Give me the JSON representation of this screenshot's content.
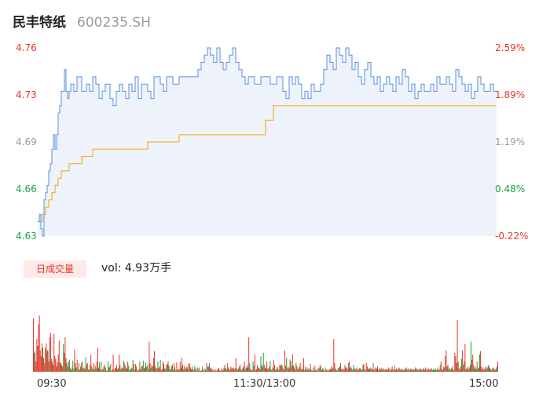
{
  "header": {
    "name": "民丰特纸",
    "code": "600235.SH"
  },
  "colors": {
    "up": "#e8362b",
    "down": "#17a23a",
    "flat": "#9a9a9a",
    "price_line": "#5a8fe0",
    "avg_line": "#f2b230",
    "area": "#eef3fb"
  },
  "price_axis": {
    "labels": [
      "4.76",
      "4.73",
      "4.69",
      "4.66",
      "4.63"
    ],
    "colors": [
      "#e8362b",
      "#e8362b",
      "#9a9a9a",
      "#17a23a",
      "#17a23a"
    ]
  },
  "pct_axis": {
    "labels": [
      "2.59%",
      "1.89%",
      "1.19%",
      "0.48%",
      "-0.22%"
    ],
    "colors": [
      "#e8362b",
      "#e8362b",
      "#9a9a9a",
      "#17a23a",
      "#e8362b"
    ]
  },
  "volume": {
    "tag": "日成交量",
    "summary": "vol: 4.93万手"
  },
  "time_axis": [
    "09:30",
    "11:30/13:00",
    "15:00"
  ],
  "chart_data": {
    "type": "line",
    "ylim": [
      4.63,
      4.76
    ],
    "series": [
      {
        "key": "price",
        "points": [
          [
            0,
            4.64
          ],
          [
            2,
            4.645
          ],
          [
            4,
            4.635
          ],
          [
            6,
            4.63
          ],
          [
            8,
            4.655
          ],
          [
            10,
            4.66
          ],
          [
            12,
            4.665
          ],
          [
            14,
            4.675
          ],
          [
            16,
            4.68
          ],
          [
            18,
            4.69
          ],
          [
            20,
            4.7
          ],
          [
            22,
            4.69
          ],
          [
            24,
            4.7
          ],
          [
            26,
            4.715
          ],
          [
            28,
            4.72
          ],
          [
            30,
            4.73
          ],
          [
            34,
            4.745
          ],
          [
            36,
            4.73
          ],
          [
            38,
            4.725
          ],
          [
            40,
            4.73
          ],
          [
            42,
            4.735
          ],
          [
            46,
            4.73
          ],
          [
            50,
            4.74
          ],
          [
            54,
            4.74
          ],
          [
            56,
            4.73
          ],
          [
            58,
            4.73
          ],
          [
            62,
            4.735
          ],
          [
            66,
            4.73
          ],
          [
            70,
            4.74
          ],
          [
            74,
            4.735
          ],
          [
            78,
            4.725
          ],
          [
            82,
            4.73
          ],
          [
            86,
            4.735
          ],
          [
            92,
            4.725
          ],
          [
            96,
            4.72
          ],
          [
            100,
            4.73
          ],
          [
            104,
            4.735
          ],
          [
            108,
            4.73
          ],
          [
            112,
            4.725
          ],
          [
            116,
            4.735
          ],
          [
            120,
            4.73
          ],
          [
            124,
            4.74
          ],
          [
            128,
            4.725
          ],
          [
            132,
            4.735
          ],
          [
            136,
            4.735
          ],
          [
            140,
            4.73
          ],
          [
            144,
            4.725
          ],
          [
            148,
            4.74
          ],
          [
            152,
            4.74
          ],
          [
            156,
            4.735
          ],
          [
            160,
            4.73
          ],
          [
            164,
            4.74
          ],
          [
            168,
            4.74
          ],
          [
            172,
            4.735
          ],
          [
            176,
            4.735
          ],
          [
            180,
            4.74
          ],
          [
            184,
            4.74
          ],
          [
            188,
            4.74
          ],
          [
            192,
            4.74
          ],
          [
            196,
            4.74
          ],
          [
            200,
            4.74
          ],
          [
            204,
            4.745
          ],
          [
            208,
            4.75
          ],
          [
            212,
            4.755
          ],
          [
            216,
            4.76
          ],
          [
            220,
            4.755
          ],
          [
            224,
            4.75
          ],
          [
            228,
            4.76
          ],
          [
            232,
            4.75
          ],
          [
            236,
            4.745
          ],
          [
            240,
            4.75
          ],
          [
            244,
            4.755
          ],
          [
            248,
            4.76
          ],
          [
            252,
            4.75
          ],
          [
            256,
            4.745
          ],
          [
            260,
            4.74
          ],
          [
            264,
            4.735
          ],
          [
            268,
            4.74
          ],
          [
            272,
            4.74
          ],
          [
            276,
            4.735
          ],
          [
            280,
            4.735
          ],
          [
            284,
            4.74
          ],
          [
            288,
            4.74
          ],
          [
            292,
            4.74
          ],
          [
            296,
            4.735
          ],
          [
            300,
            4.735
          ],
          [
            304,
            4.74
          ],
          [
            308,
            4.74
          ],
          [
            312,
            4.73
          ],
          [
            316,
            4.725
          ],
          [
            320,
            4.74
          ],
          [
            324,
            4.735
          ],
          [
            328,
            4.74
          ],
          [
            332,
            4.735
          ],
          [
            336,
            4.725
          ],
          [
            340,
            4.73
          ],
          [
            344,
            4.725
          ],
          [
            348,
            4.735
          ],
          [
            352,
            4.73
          ],
          [
            356,
            4.73
          ],
          [
            360,
            4.735
          ],
          [
            364,
            4.745
          ],
          [
            368,
            4.755
          ],
          [
            372,
            4.75
          ],
          [
            376,
            4.745
          ],
          [
            380,
            4.76
          ],
          [
            384,
            4.755
          ],
          [
            388,
            4.75
          ],
          [
            392,
            4.76
          ],
          [
            396,
            4.755
          ],
          [
            400,
            4.745
          ],
          [
            404,
            4.75
          ],
          [
            408,
            4.74
          ],
          [
            412,
            4.735
          ],
          [
            416,
            4.745
          ],
          [
            420,
            4.75
          ],
          [
            424,
            4.74
          ],
          [
            428,
            4.735
          ],
          [
            432,
            4.74
          ],
          [
            436,
            4.73
          ],
          [
            440,
            4.735
          ],
          [
            444,
            4.74
          ],
          [
            448,
            4.735
          ],
          [
            452,
            4.73
          ],
          [
            456,
            4.74
          ],
          [
            460,
            4.735
          ],
          [
            464,
            4.745
          ],
          [
            468,
            4.74
          ],
          [
            472,
            4.73
          ],
          [
            476,
            4.735
          ],
          [
            480,
            4.725
          ],
          [
            484,
            4.73
          ],
          [
            488,
            4.735
          ],
          [
            492,
            4.73
          ],
          [
            496,
            4.73
          ],
          [
            500,
            4.735
          ],
          [
            504,
            4.73
          ],
          [
            508,
            4.74
          ],
          [
            512,
            4.735
          ],
          [
            516,
            4.735
          ],
          [
            520,
            4.74
          ],
          [
            524,
            4.735
          ],
          [
            528,
            4.73
          ],
          [
            532,
            4.745
          ],
          [
            536,
            4.74
          ],
          [
            540,
            4.735
          ],
          [
            544,
            4.73
          ],
          [
            548,
            4.735
          ],
          [
            552,
            4.725
          ],
          [
            556,
            4.73
          ],
          [
            560,
            4.74
          ],
          [
            564,
            4.735
          ],
          [
            568,
            4.73
          ],
          [
            572,
            4.73
          ],
          [
            576,
            4.735
          ],
          [
            580,
            4.73
          ],
          [
            584,
            4.73
          ]
        ]
      },
      {
        "key": "avg",
        "points": [
          [
            0,
            4.64
          ],
          [
            6,
            4.645
          ],
          [
            10,
            4.65
          ],
          [
            14,
            4.655
          ],
          [
            18,
            4.66
          ],
          [
            22,
            4.665
          ],
          [
            26,
            4.67
          ],
          [
            30,
            4.675
          ],
          [
            40,
            4.68
          ],
          [
            56,
            4.685
          ],
          [
            70,
            4.69
          ],
          [
            100,
            4.69
          ],
          [
            140,
            4.695
          ],
          [
            180,
            4.7
          ],
          [
            240,
            4.7
          ],
          [
            290,
            4.71
          ],
          [
            300,
            4.72
          ],
          [
            584,
            4.72
          ]
        ]
      }
    ]
  },
  "volume_data": {
    "values": [
      0.62,
      0.22,
      0.24,
      0.12,
      0.38,
      0.3,
      0.55,
      0.65,
      0.25,
      0.18,
      0.33,
      0.28,
      0.16,
      0.1,
      0.28,
      0.33,
      0.25,
      0.24,
      0.12,
      0.4,
      0.45,
      0.15,
      0.12,
      0.08,
      0.44,
      0.18,
      0.15,
      0.06,
      0.11,
      0.2,
      0.36,
      0.1,
      0.11,
      0.08,
      0.06,
      0.32,
      0.22,
      0.4,
      0.16,
      0.1,
      0.06,
      0.12,
      0.14,
      0.04,
      0.02,
      0.05,
      0.13,
      0.03,
      0.26,
      0.1,
      0.05,
      0.14,
      0.03,
      0.1,
      0.02,
      0.06,
      0.1,
      0.12,
      0.04,
      0.05,
      0.03,
      0.17,
      0.08,
      0.1,
      0.03,
      0.02,
      0.08,
      0.2,
      0.06,
      0.03,
      0.1,
      0.03,
      0.07,
      0.04,
      0.12,
      0.28,
      0.05,
      0.11,
      0.03,
      0.12,
      0.02,
      0.03,
      0.06,
      0.08,
      0.05,
      0.02,
      0.01,
      0.12,
      0.05,
      0.06,
      0.09,
      0.01,
      0.03,
      0.2,
      0.02,
      0.04,
      0.05,
      0.08,
      0.03,
      0.04,
      0.2,
      0.08,
      0.03,
      0.05,
      0.04,
      0.13,
      0.1,
      0.07,
      0.04,
      0.04,
      0.12,
      0.07,
      0.03,
      0.02,
      0.05,
      0.04,
      0.14,
      0.09,
      0.02,
      0.09,
      0.06,
      0.02,
      0.01,
      0.03,
      0.12,
      0.03,
      0.06,
      0.07,
      0.13,
      0.04,
      0.05,
      0.11,
      0.06,
      0.08,
      0.03,
      0.35,
      0.1,
      0.05,
      0.08,
      0.06,
      0.16,
      0.24,
      0.07,
      0.04,
      0.04,
      0.12,
      0.04,
      0.06,
      0.14,
      0.02,
      0.03,
      0.12,
      0.09,
      0.04,
      0.03,
      0.08,
      0.09,
      0.12,
      0.07,
      0.03,
      0.03,
      0.07,
      0.08,
      0.02,
      0.1,
      0.05,
      0.02,
      0.11,
      0.02,
      0.03,
      0.03,
      0.12,
      0.05,
      0.16,
      0.08,
      0.03,
      0.07,
      0.03,
      0.05,
      0.06,
      0.03,
      0.09,
      0.1,
      0.05,
      0.03,
      0.06,
      0.03,
      0.02,
      0.07,
      0.04,
      0.01,
      0.05,
      0.03,
      0.05,
      0.01,
      0.01,
      0.02,
      0.06,
      0.03,
      0.01,
      0.04,
      0.02,
      0.1,
      0.06,
      0.06,
      0.1,
      0.04,
      0.05,
      0.02,
      0.03,
      0.02,
      0.01,
      0.03,
      0.01,
      0.02,
      0.04,
      0.04,
      0.02,
      0.01,
      0.04,
      0.02,
      0.02,
      0.05,
      0.08,
      0.04,
      0.03,
      0.1,
      0.05,
      0.02,
      0.03,
      0.06,
      0.04,
      0.04,
      0.05,
      0.03,
      0.04,
      0.16,
      0.04,
      0.02,
      0.04,
      0.06,
      0.08,
      0.03,
      0.02,
      0.05,
      0.06,
      0.12,
      0.03,
      0.05,
      0.08,
      0.05,
      0.4,
      0.1,
      0.04,
      0.02,
      0.02,
      0.12,
      0.07,
      0.2,
      0.02,
      0.03,
      0.08,
      0.05,
      0.05,
      0.03,
      0.18,
      0.08,
      0.06,
      0.22,
      0.08,
      0.04,
      0.05,
      0.12,
      0.03,
      0.04,
      0.06,
      0.13,
      0.02,
      0.03,
      0.05,
      0.14,
      0.08,
      0.02,
      0.03,
      0.06,
      0.04,
      0.02,
      0.08,
      0.07,
      0.09,
      0.07,
      0.04,
      0.02,
      0.25,
      0.07,
      0.16,
      0.04,
      0.06,
      0.04,
      0.14,
      0.12,
      0.06,
      0.2,
      0.08,
      0.05,
      0.02,
      0.1,
      0.07,
      0.04,
      0.03,
      0.06,
      0.1,
      0.04,
      0.02,
      0.04,
      0.16,
      0.02,
      0.06,
      0.03,
      0.05,
      0.02,
      0.04,
      0.03,
      0.09,
      0.02,
      0.01,
      0.05,
      0.02,
      0.07,
      0.02,
      0.03,
      0.01,
      0.05,
      0.04,
      0.08,
      0.06,
      0.02,
      0.04,
      0.03,
      0.01,
      0.05,
      0.02,
      0.03,
      0.01,
      0.02,
      0.03,
      0.03,
      0.06,
      0.03,
      0.05,
      0.38,
      0.1,
      0.04,
      0.02,
      0.02,
      0.04,
      0.05,
      0.06,
      0.1,
      0.03,
      0.03,
      0.04,
      0.02,
      0.08,
      0.05,
      0.05,
      0.03,
      0.1,
      0.12,
      0.04,
      0.06,
      0.04,
      0.02,
      0.08,
      0.04,
      0.03,
      0.04,
      0.02,
      0.05,
      0.02,
      0.04,
      0.04,
      0.03,
      0.02,
      0.08,
      0.09,
      0.03,
      0.02,
      0.1,
      0.06,
      0.03,
      0.04,
      0.04,
      0.05,
      0.03,
      0.03,
      0.1,
      0.02,
      0.05,
      0.03,
      0.04,
      0.06,
      0.02,
      0.03,
      0.04,
      0.03,
      0.05,
      0.02,
      0.04,
      0.02,
      0.03,
      0.03,
      0.02,
      0.03,
      0.05,
      0.02,
      0.04,
      0.02,
      0.06,
      0.03,
      0.02,
      0.07,
      0.02,
      0.04,
      0.03,
      0.02,
      0.05,
      0.04,
      0.02,
      0.03,
      0.03,
      0.02,
      0.02,
      0.04,
      0.03,
      0.05,
      0.02,
      0.04,
      0.02,
      0.03,
      0.04,
      0.02,
      0.03,
      0.03,
      0.02,
      0.05,
      0.03,
      0.04,
      0.02,
      0.03,
      0.02,
      0.04,
      0.03,
      0.02,
      0.03,
      0.04,
      0.02,
      0.05,
      0.03,
      0.02,
      0.04,
      0.03,
      0.02,
      0.03,
      0.04,
      0.02,
      0.03,
      0.02,
      0.04,
      0.03,
      0.02,
      0.05,
      0.02,
      0.03,
      0.08,
      0.12,
      0.03,
      0.02,
      0.06,
      0.05,
      0.18,
      0.25,
      0.06,
      0.08,
      0.03,
      0.05,
      0.02,
      0.04,
      0.06,
      0.03,
      0.02,
      0.22,
      0.18,
      0.1,
      0.6,
      0.12,
      0.04,
      0.03,
      0.06,
      0.15,
      0.25,
      0.08,
      0.12,
      0.32,
      0.03,
      0.04,
      0.06,
      0.03,
      0.05,
      0.08,
      0.35,
      0.14,
      0.2,
      0.08,
      0.04,
      0.06,
      0.03,
      0.12,
      0.04,
      0.05,
      0.2,
      0.24,
      0.06,
      0.03,
      0.05,
      0.02,
      0.04,
      0.06,
      0.03,
      0.05,
      0.08,
      0.06,
      0.04,
      0.03,
      0.02,
      0.04,
      0.05,
      0.03,
      0.02,
      0.04,
      0.06,
      0.12
    ],
    "ups": "RRGRRRRRRRRGRRRRRGRRRRGRRRRRRRRGRRRGRRGRGRGGGRGGRGRRGRGRGRRGRGRRRGGRGRRGRGRRRGRGRGRRGRRGGGRGRRGRRRGRRGGRRGRGGRRGGRGRGRRRGRRGRRGRGRGGRGGRRGRGRRGRRGRRGRRRRGRGRRGGRGRGRGRRRGRRGRRGRRGRGRRRGGRRGRGRRGRRGGRRGRRGRGRRGRGRRGRRRGGRRGRGRGRRRGRRRGRRRGRGRRGRRGRGGRRRGRRRGRRGRRRGRGRRGRRGRRGRGRRGRRRGRGGRRGRRGRRGRGRRGRRGRRRGRGRRGRRRGRRGRRGRRRGRRGRGGRRGRGRRGRRGRRGRRGRRRGRGRRGRRGRRRRRGRRGRGGRRGRRGRGRRGRRGRRRGRRGRGRRGRRRRRGRRGRRRGRRGRGRRRGRRGRRRRGRGRRGRRGRRGRGRRRGRRRGRGRRGRRGRRRGRRGGGRGRGRRGRRGRRRRGRRGRGRRGRRRRGRRRGRRGRRGRGRRGRRGRGRRGRGRRGRGRGRRGRGRGRGRRRGRRRRGRGRGRRRRGGRGRRGRRG"
  }
}
